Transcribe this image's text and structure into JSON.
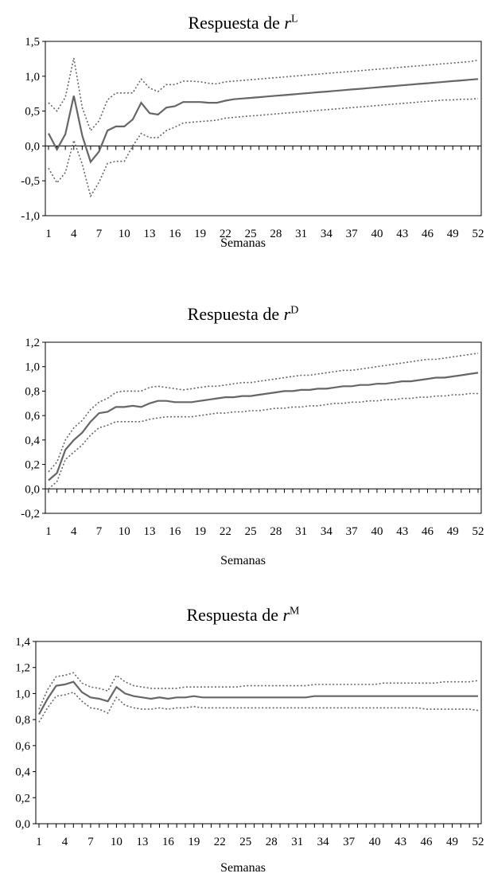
{
  "chart_data": [
    {
      "type": "line",
      "title": "Respuesta de ",
      "title_var": "r",
      "title_sup": "L",
      "xlabel": "Semanas",
      "ylabel": "",
      "ylim": [
        -1.0,
        1.5
      ],
      "yticks": [
        "-1,0",
        "-0,5",
        "0,0",
        "0,5",
        "1,0",
        "1,5"
      ],
      "xticks": [
        "1",
        "4",
        "7",
        "10",
        "13",
        "16",
        "19",
        "22",
        "25",
        "28",
        "31",
        "34",
        "37",
        "40",
        "43",
        "46",
        "49",
        "52"
      ],
      "x": [
        1,
        2,
        3,
        4,
        5,
        6,
        7,
        8,
        9,
        10,
        11,
        12,
        13,
        14,
        15,
        16,
        17,
        18,
        19,
        20,
        21,
        22,
        23,
        24,
        25,
        26,
        27,
        28,
        29,
        30,
        31,
        32,
        33,
        34,
        35,
        36,
        37,
        38,
        39,
        40,
        41,
        42,
        43,
        44,
        45,
        46,
        47,
        48,
        49,
        50,
        51,
        52
      ],
      "series": [
        {
          "values": [
            0.18,
            -0.05,
            0.17,
            0.72,
            0.15,
            -0.23,
            -0.08,
            0.22,
            0.28,
            0.28,
            0.38,
            0.62,
            0.47,
            0.45,
            0.55,
            0.57,
            0.63,
            0.63,
            0.63,
            0.62,
            0.62,
            0.65,
            0.67,
            0.68,
            0.69,
            0.7,
            0.71,
            0.72,
            0.73,
            0.74,
            0.75,
            0.76,
            0.77,
            0.78,
            0.79,
            0.8,
            0.81,
            0.82,
            0.83,
            0.84,
            0.85,
            0.86,
            0.87,
            0.88,
            0.89,
            0.9,
            0.91,
            0.92,
            0.93,
            0.94,
            0.95,
            0.96
          ],
          "style": "solid"
        },
        {
          "values": [
            0.62,
            0.5,
            0.7,
            1.26,
            0.55,
            0.22,
            0.36,
            0.66,
            0.76,
            0.76,
            0.76,
            0.96,
            0.83,
            0.78,
            0.88,
            0.88,
            0.93,
            0.93,
            0.92,
            0.9,
            0.89,
            0.92,
            0.93,
            0.94,
            0.95,
            0.96,
            0.97,
            0.98,
            0.99,
            1.0,
            1.01,
            1.02,
            1.03,
            1.04,
            1.05,
            1.06,
            1.07,
            1.08,
            1.09,
            1.1,
            1.11,
            1.12,
            1.13,
            1.14,
            1.15,
            1.16,
            1.17,
            1.18,
            1.19,
            1.2,
            1.21,
            1.23
          ],
          "style": "dotted"
        },
        {
          "values": [
            -0.32,
            -0.53,
            -0.38,
            0.08,
            -0.26,
            -0.72,
            -0.52,
            -0.25,
            -0.22,
            -0.22,
            0.0,
            0.18,
            0.12,
            0.12,
            0.22,
            0.27,
            0.33,
            0.34,
            0.35,
            0.36,
            0.37,
            0.4,
            0.41,
            0.42,
            0.43,
            0.44,
            0.45,
            0.46,
            0.47,
            0.48,
            0.49,
            0.5,
            0.51,
            0.52,
            0.53,
            0.54,
            0.55,
            0.56,
            0.57,
            0.58,
            0.59,
            0.6,
            0.61,
            0.62,
            0.63,
            0.64,
            0.65,
            0.66,
            0.66,
            0.67,
            0.67,
            0.68
          ],
          "style": "dotted"
        }
      ]
    },
    {
      "type": "line",
      "title": "Respuesta de ",
      "title_var": "r",
      "title_sup": "D",
      "xlabel": "Semanas",
      "ylabel": "",
      "ylim": [
        -0.2,
        1.2
      ],
      "yticks": [
        "-0,2",
        "0,0",
        "0,2",
        "0,4",
        "0,6",
        "0,8",
        "1,0",
        "1,2"
      ],
      "xticks": [
        "1",
        "4",
        "7",
        "10",
        "13",
        "16",
        "19",
        "22",
        "25",
        "28",
        "31",
        "34",
        "37",
        "40",
        "43",
        "46",
        "49",
        "52"
      ],
      "x": [
        1,
        2,
        3,
        4,
        5,
        6,
        7,
        8,
        9,
        10,
        11,
        12,
        13,
        14,
        15,
        16,
        17,
        18,
        19,
        20,
        21,
        22,
        23,
        24,
        25,
        26,
        27,
        28,
        29,
        30,
        31,
        32,
        33,
        34,
        35,
        36,
        37,
        38,
        39,
        40,
        41,
        42,
        43,
        44,
        45,
        46,
        47,
        48,
        49,
        50,
        51,
        52
      ],
      "series": [
        {
          "values": [
            0.07,
            0.13,
            0.32,
            0.4,
            0.46,
            0.55,
            0.62,
            0.63,
            0.67,
            0.67,
            0.68,
            0.67,
            0.7,
            0.72,
            0.72,
            0.71,
            0.71,
            0.71,
            0.72,
            0.73,
            0.74,
            0.75,
            0.75,
            0.76,
            0.76,
            0.77,
            0.78,
            0.79,
            0.8,
            0.8,
            0.81,
            0.81,
            0.82,
            0.82,
            0.83,
            0.84,
            0.84,
            0.85,
            0.85,
            0.86,
            0.86,
            0.87,
            0.88,
            0.88,
            0.89,
            0.9,
            0.91,
            0.91,
            0.92,
            0.93,
            0.94,
            0.95
          ],
          "style": "solid"
        },
        {
          "values": [
            0.14,
            0.22,
            0.4,
            0.5,
            0.56,
            0.65,
            0.71,
            0.74,
            0.79,
            0.8,
            0.8,
            0.8,
            0.83,
            0.84,
            0.83,
            0.82,
            0.81,
            0.82,
            0.83,
            0.84,
            0.84,
            0.85,
            0.86,
            0.87,
            0.87,
            0.88,
            0.89,
            0.9,
            0.91,
            0.92,
            0.93,
            0.93,
            0.94,
            0.95,
            0.96,
            0.97,
            0.97,
            0.98,
            0.99,
            1.0,
            1.01,
            1.02,
            1.03,
            1.04,
            1.05,
            1.06,
            1.06,
            1.07,
            1.08,
            1.09,
            1.1,
            1.11
          ],
          "style": "dotted"
        },
        {
          "values": [
            0.0,
            0.06,
            0.24,
            0.3,
            0.36,
            0.44,
            0.5,
            0.52,
            0.55,
            0.55,
            0.55,
            0.55,
            0.57,
            0.58,
            0.59,
            0.59,
            0.59,
            0.59,
            0.6,
            0.61,
            0.62,
            0.62,
            0.63,
            0.63,
            0.64,
            0.64,
            0.65,
            0.66,
            0.66,
            0.67,
            0.67,
            0.68,
            0.68,
            0.69,
            0.7,
            0.7,
            0.71,
            0.71,
            0.72,
            0.72,
            0.73,
            0.73,
            0.74,
            0.74,
            0.75,
            0.75,
            0.76,
            0.76,
            0.77,
            0.77,
            0.78,
            0.78
          ],
          "style": "dotted"
        }
      ]
    },
    {
      "type": "line",
      "title": "Respuesta de ",
      "title_var": "r",
      "title_sup": "M",
      "xlabel": "Semanas",
      "ylabel": "",
      "ylim": [
        0.0,
        1.4
      ],
      "yticks": [
        "0,0",
        "0,2",
        "0,4",
        "0,6",
        "0,8",
        "1,0",
        "1,2",
        "1,4"
      ],
      "xticks": [
        "1",
        "4",
        "7",
        "10",
        "13",
        "16",
        "19",
        "22",
        "25",
        "28",
        "31",
        "34",
        "37",
        "40",
        "43",
        "46",
        "49",
        "52"
      ],
      "x": [
        1,
        2,
        3,
        4,
        5,
        6,
        7,
        8,
        9,
        10,
        11,
        12,
        13,
        14,
        15,
        16,
        17,
        18,
        19,
        20,
        21,
        22,
        23,
        24,
        25,
        26,
        27,
        28,
        29,
        30,
        31,
        32,
        33,
        34,
        35,
        36,
        37,
        38,
        39,
        40,
        41,
        42,
        43,
        44,
        45,
        46,
        47,
        48,
        49,
        50,
        51,
        52
      ],
      "series": [
        {
          "values": [
            0.84,
            0.96,
            1.06,
            1.07,
            1.09,
            1.01,
            0.97,
            0.96,
            0.94,
            1.05,
            1.0,
            0.98,
            0.97,
            0.96,
            0.97,
            0.96,
            0.97,
            0.97,
            0.98,
            0.97,
            0.97,
            0.97,
            0.97,
            0.97,
            0.97,
            0.97,
            0.97,
            0.97,
            0.97,
            0.97,
            0.97,
            0.97,
            0.98,
            0.98,
            0.98,
            0.98,
            0.98,
            0.98,
            0.98,
            0.98,
            0.98,
            0.98,
            0.98,
            0.98,
            0.98,
            0.98,
            0.98,
            0.98,
            0.98,
            0.98,
            0.98,
            0.98
          ],
          "style": "solid"
        },
        {
          "values": [
            0.88,
            1.03,
            1.13,
            1.14,
            1.16,
            1.08,
            1.05,
            1.04,
            1.02,
            1.14,
            1.09,
            1.06,
            1.05,
            1.04,
            1.04,
            1.04,
            1.04,
            1.05,
            1.05,
            1.05,
            1.05,
            1.05,
            1.05,
            1.05,
            1.06,
            1.06,
            1.06,
            1.06,
            1.06,
            1.06,
            1.06,
            1.06,
            1.07,
            1.07,
            1.07,
            1.07,
            1.07,
            1.07,
            1.07,
            1.07,
            1.08,
            1.08,
            1.08,
            1.08,
            1.08,
            1.08,
            1.08,
            1.09,
            1.09,
            1.09,
            1.09,
            1.1
          ],
          "style": "dotted"
        },
        {
          "values": [
            0.78,
            0.89,
            0.98,
            0.99,
            1.01,
            0.94,
            0.89,
            0.88,
            0.85,
            0.97,
            0.91,
            0.89,
            0.88,
            0.88,
            0.89,
            0.88,
            0.89,
            0.89,
            0.9,
            0.89,
            0.89,
            0.89,
            0.89,
            0.89,
            0.89,
            0.89,
            0.89,
            0.89,
            0.89,
            0.89,
            0.89,
            0.89,
            0.89,
            0.89,
            0.89,
            0.89,
            0.89,
            0.89,
            0.89,
            0.89,
            0.89,
            0.89,
            0.89,
            0.89,
            0.89,
            0.88,
            0.88,
            0.88,
            0.88,
            0.88,
            0.88,
            0.87
          ],
          "style": "dotted"
        }
      ]
    }
  ]
}
